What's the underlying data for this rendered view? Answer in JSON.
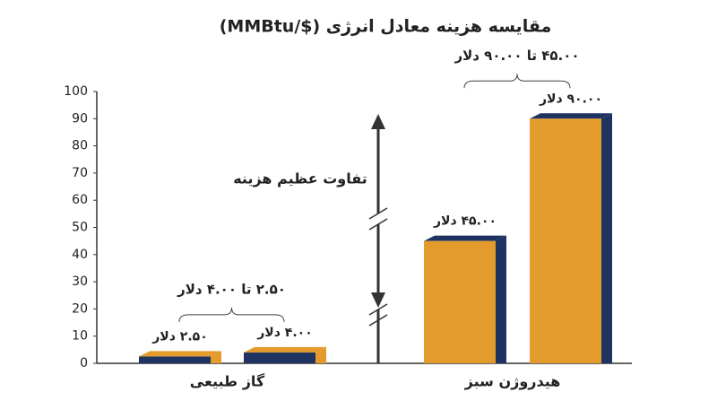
{
  "chart_data": {
    "type": "bar",
    "title": "مقایسه هزینه معادل انرژی ($/MMBtu)",
    "categories": [
      "گاز طبیعی",
      "هیدروژن سبز"
    ],
    "series": [
      {
        "values": [
          2.5,
          45
        ],
        "value_labels": [
          "۲.۵۰ دلار",
          "۴۵.۰۰ دلار"
        ]
      },
      {
        "values": [
          4,
          90
        ],
        "value_labels": [
          "۴.۰۰ دلار",
          "۹۰.۰۰ دلار"
        ]
      }
    ],
    "front_colors": [
      "#1f3361",
      "#e39b2b"
    ],
    "side_colors": [
      "#e39b2b",
      "#1f3361"
    ],
    "range_labels": [
      "۲.۵۰ تا ۴.۰۰ دلار",
      "۴۵.۰۰ تا ۹۰.۰۰ دلار"
    ],
    "gap_label": "تفاوت عظیم هزینه",
    "ylim": [
      0,
      100
    ],
    "yticks": [
      0,
      10,
      20,
      30,
      40,
      50,
      60,
      70,
      80,
      90,
      100
    ]
  }
}
